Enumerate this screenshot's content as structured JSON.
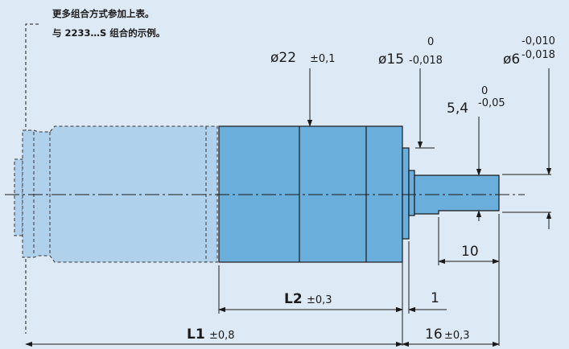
{
  "notes": {
    "line1": "更多组合方式参加上表。",
    "line2": "与 2233…S 组合的示例。"
  },
  "dimensions": {
    "d22": {
      "symbol": "ø22",
      "tol": "±0,1"
    },
    "d15": {
      "symbol": "ø15",
      "tol_upper": "0",
      "tol_lower": "-0,018"
    },
    "d6": {
      "symbol": "ø6",
      "tol_upper": "-0,010",
      "tol_lower": "-0,018"
    },
    "flat": {
      "value": "5,4",
      "tol_upper": "0",
      "tol_lower": "-0,05"
    },
    "len10": {
      "value": "10"
    },
    "len1": {
      "value": "1"
    },
    "L2": {
      "label": "L2",
      "tol": "±0,3"
    },
    "L1": {
      "label": "L1",
      "tol": "±0,8"
    },
    "len16": {
      "value": "16",
      "tol": "±0,3"
    }
  },
  "colors": {
    "background": "#dde9f5",
    "gearhead_fill": "#6aaedb",
    "motor_fill": "#b0d1ec",
    "outline": "#1a1a1a"
  }
}
